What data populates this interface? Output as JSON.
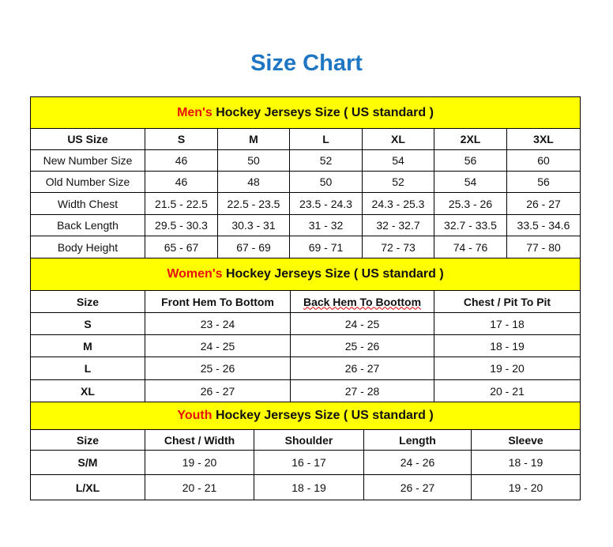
{
  "title": "Size Chart",
  "colors": {
    "title": "#1f77c4",
    "header_bg": "#ffff00",
    "highlight": "#e8120c"
  },
  "mens": {
    "highlight": "Men's",
    "heading": " Hockey Jerseys Size ( US standard )",
    "columns": [
      "US Size",
      "S",
      "M",
      "L",
      "XL",
      "2XL",
      "3XL"
    ],
    "rows": [
      [
        "New Number Size",
        "46",
        "50",
        "52",
        "54",
        "56",
        "60"
      ],
      [
        "Old Number Size",
        "46",
        "48",
        "50",
        "52",
        "54",
        "56"
      ],
      [
        "Width Chest",
        "21.5 - 22.5",
        "22.5 - 23.5",
        "23.5 - 24.3",
        "24.3 - 25.3",
        "25.3 - 26",
        "26 - 27"
      ],
      [
        "Back Length",
        "29.5 - 30.3",
        "30.3 - 31",
        "31 - 32",
        "32 - 32.7",
        "32.7 - 33.5",
        "33.5 - 34.6"
      ],
      [
        "Body Height",
        "65 - 67",
        "67 - 69",
        "69 - 71",
        "72 - 73",
        "74 - 76",
        "77 - 80"
      ]
    ]
  },
  "womens": {
    "highlight": "Women's",
    "heading": " Hockey Jerseys Size ( US standard )",
    "columns": [
      "Size",
      "Front Hem To Bottom",
      "Back Hem To Boottom",
      "Chest / Pit To Pit"
    ],
    "rows": [
      [
        "S",
        "23 - 24",
        "24 - 25",
        "17 - 18"
      ],
      [
        "M",
        "24 - 25",
        "25 - 26",
        "18 - 19"
      ],
      [
        "L",
        "25 - 26",
        "26 - 27",
        "19 - 20"
      ],
      [
        "XL",
        "26 - 27",
        "27 - 28",
        "20 - 21"
      ]
    ]
  },
  "youth": {
    "highlight": "Youth",
    "heading": " Hockey Jerseys Size ( US standard )",
    "columns": [
      "Size",
      "Chest / Width",
      "Shoulder",
      "Length",
      "Sleeve"
    ],
    "rows": [
      [
        "S/M",
        "19 - 20",
        "16 - 17",
        "24 - 26",
        "18 - 19"
      ],
      [
        "L/XL",
        "20 - 21",
        "18 - 19",
        "26 - 27",
        "19 - 20"
      ]
    ]
  }
}
